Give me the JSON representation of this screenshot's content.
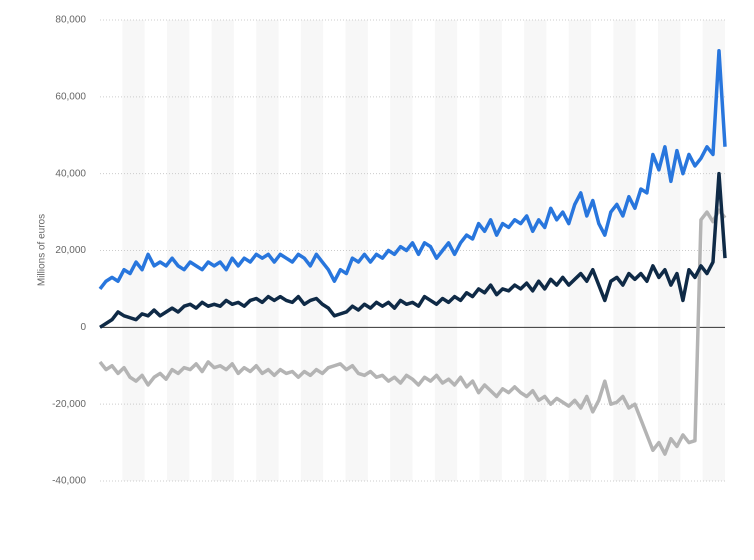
{
  "chart_data": {
    "type": "line",
    "y_label": "Millions of euros",
    "categories": [
      null,
      null,
      null,
      null,
      null,
      null,
      null,
      null,
      null,
      null,
      null,
      null,
      null,
      null,
      null,
      null,
      null,
      null,
      null,
      null,
      null,
      null,
      null,
      null,
      null,
      null,
      null,
      null,
      null,
      null,
      null,
      null,
      null,
      null,
      null,
      null,
      null,
      null,
      null,
      null,
      null,
      null,
      null,
      null,
      null,
      null,
      null,
      null,
      null,
      null,
      null,
      null,
      null,
      null,
      null,
      null,
      null,
      null,
      null,
      null,
      null,
      null,
      null,
      null,
      null,
      null,
      null,
      null,
      null,
      null,
      null,
      null,
      null,
      null,
      null,
      null,
      null,
      null,
      null,
      null,
      null,
      null,
      null,
      null,
      null,
      null,
      null,
      null,
      null,
      null,
      null,
      null,
      null,
      null,
      null,
      null,
      null,
      null,
      null,
      null,
      null,
      null,
      null,
      null,
      null
    ],
    "ylim": [
      -40000,
      80000
    ],
    "yticks": [
      {
        "value": -40000,
        "label": "-40,000"
      },
      {
        "value": -20000,
        "label": "-20,000"
      },
      0,
      {
        "value": 20000,
        "label": "20,000"
      },
      {
        "value": 40000,
        "label": "40,000"
      },
      {
        "value": 60000,
        "label": "60,000"
      },
      {
        "value": 80000,
        "label": "80,000"
      }
    ],
    "grid": true,
    "series": [
      {
        "color": "#2876dd",
        "values": [
          10000,
          12000,
          13000,
          12000,
          15000,
          14000,
          17000,
          15000,
          19000,
          16000,
          17000,
          16000,
          18000,
          16000,
          15000,
          17000,
          16000,
          15000,
          17000,
          16000,
          17000,
          15000,
          18000,
          16000,
          18000,
          17000,
          19000,
          18000,
          19000,
          17000,
          19000,
          18000,
          17000,
          19000,
          18000,
          16000,
          19000,
          17000,
          15000,
          12000,
          15000,
          14000,
          18000,
          17000,
          19000,
          17000,
          19000,
          18000,
          20000,
          19000,
          21000,
          20000,
          22000,
          19000,
          22000,
          21000,
          18000,
          20000,
          22000,
          19000,
          22000,
          24000,
          23000,
          27000,
          25000,
          28000,
          24000,
          27000,
          26000,
          28000,
          27000,
          29000,
          25000,
          28000,
          26000,
          31000,
          28000,
          30000,
          27000,
          32000,
          35000,
          29000,
          33000,
          27000,
          24000,
          30000,
          32000,
          29000,
          34000,
          31000,
          36000,
          35000,
          45000,
          41000,
          47000,
          38000,
          46000,
          40000,
          45000,
          42000,
          44000,
          47000,
          45000,
          72000,
          47000
        ]
      },
      {
        "color": "#0f2a46",
        "values": [
          0,
          1000,
          2000,
          4000,
          3000,
          2500,
          2000,
          3500,
          3000,
          4500,
          3000,
          4000,
          5000,
          4000,
          5500,
          6000,
          5000,
          6500,
          5500,
          6000,
          5500,
          7000,
          6000,
          6500,
          5500,
          7000,
          7500,
          6500,
          8000,
          7000,
          8000,
          7000,
          6500,
          8000,
          6000,
          7000,
          7500,
          6000,
          5000,
          3000,
          3500,
          4000,
          5500,
          4500,
          6000,
          5000,
          6500,
          5500,
          6500,
          5000,
          7000,
          6000,
          6500,
          5500,
          8000,
          7000,
          6000,
          7500,
          6500,
          8000,
          7000,
          9000,
          8000,
          10000,
          9000,
          11000,
          8500,
          10000,
          9500,
          11000,
          10000,
          11500,
          9500,
          12000,
          10000,
          12500,
          11000,
          13000,
          11000,
          12500,
          14000,
          12000,
          15000,
          11000,
          7000,
          12000,
          13000,
          11000,
          14000,
          12500,
          14000,
          12000,
          16000,
          13000,
          15000,
          11000,
          14000,
          7000,
          15000,
          13000,
          16000,
          14000,
          17000,
          40000,
          18000
        ]
      },
      {
        "color": "#b4b4b4",
        "values": [
          -9000,
          -11000,
          -10000,
          -12000,
          -10500,
          -13000,
          -14000,
          -12500,
          -15000,
          -13000,
          -12000,
          -13500,
          -11000,
          -12000,
          -10500,
          -11000,
          -9500,
          -11500,
          -9000,
          -10500,
          -10000,
          -11000,
          -9500,
          -12000,
          -10500,
          -11500,
          -10000,
          -12000,
          -11000,
          -12500,
          -11000,
          -12000,
          -11500,
          -13000,
          -11500,
          -12500,
          -11000,
          -12000,
          -10500,
          -10000,
          -9500,
          -11000,
          -10000,
          -12000,
          -12500,
          -11500,
          -13000,
          -12500,
          -14000,
          -13000,
          -14500,
          -12500,
          -13500,
          -15000,
          -13000,
          -14000,
          -12500,
          -14500,
          -13500,
          -15000,
          -13000,
          -15500,
          -14000,
          -17000,
          -15000,
          -16500,
          -18000,
          -16000,
          -17000,
          -15500,
          -17000,
          -18000,
          -16500,
          -19000,
          -18000,
          -20000,
          -18500,
          -19500,
          -20500,
          -19000,
          -21000,
          -18000,
          -22000,
          -19000,
          -14000,
          -20000,
          -19500,
          -18000,
          -21000,
          -20000,
          -24000,
          -28000,
          -32000,
          -30000,
          -33000,
          -29000,
          -31000,
          -28000,
          -30000,
          -29500,
          28000,
          30000,
          27500,
          30500,
          28500
        ]
      }
    ]
  }
}
